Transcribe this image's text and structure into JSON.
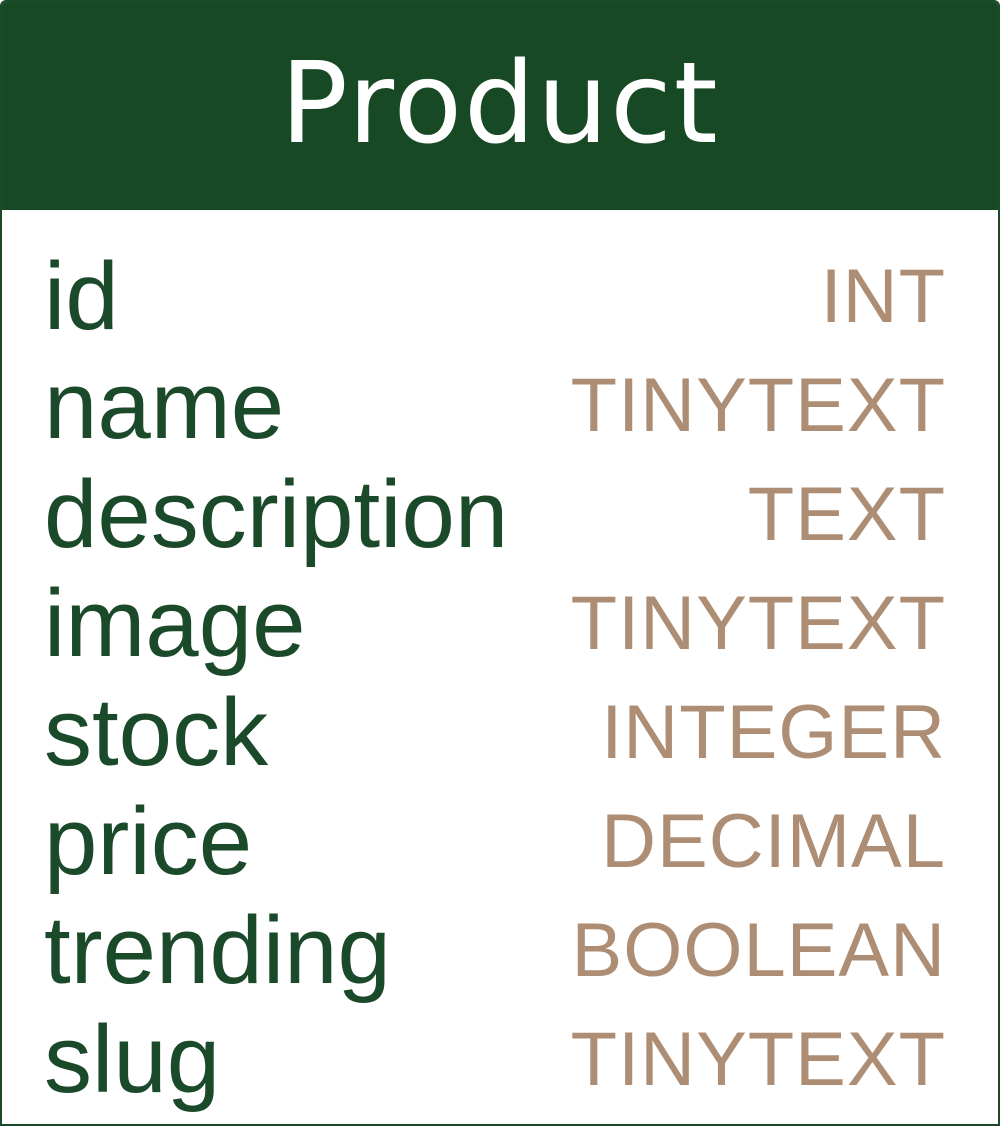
{
  "entity": {
    "title": "Product",
    "fields": [
      {
        "name": "id",
        "type": "INT"
      },
      {
        "name": "name",
        "type": "TINYTEXT"
      },
      {
        "name": "description",
        "type": "TEXT"
      },
      {
        "name": "image",
        "type": "TINYTEXT"
      },
      {
        "name": "stock",
        "type": "INTEGER"
      },
      {
        "name": "price",
        "type": "DECIMAL"
      },
      {
        "name": "trending",
        "type": "BOOLEAN"
      },
      {
        "name": "slug",
        "type": "TINYTEXT"
      }
    ]
  },
  "colors": {
    "header_background": "#184925",
    "header_text": "#ffffff",
    "field_name": "#1b4a2a",
    "field_type": "#ad8e75",
    "border": "#1b4a2a"
  }
}
